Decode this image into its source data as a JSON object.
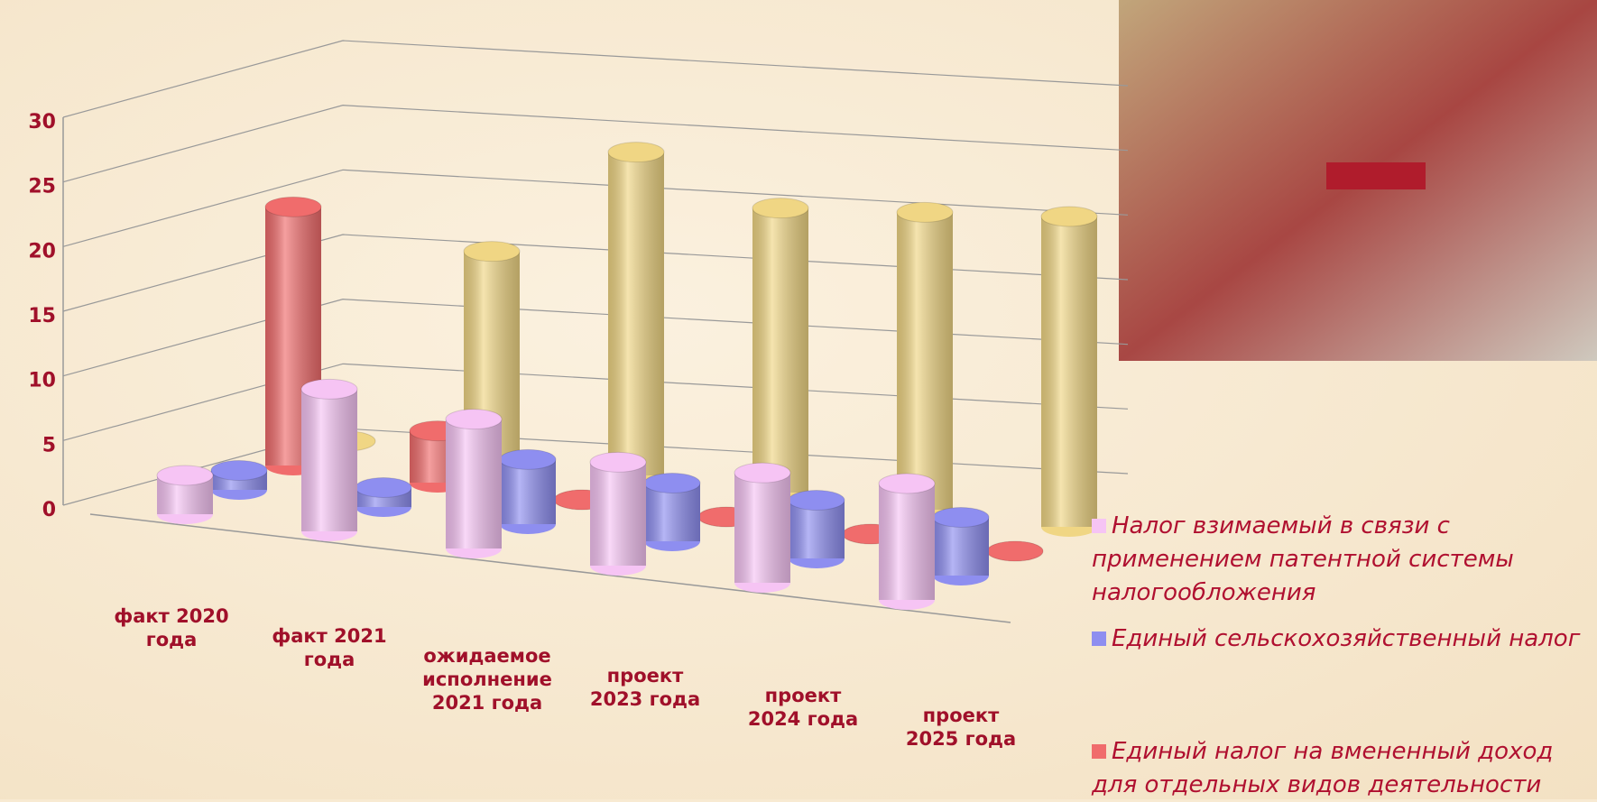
{
  "chart_data": {
    "type": "bar3d",
    "categories": [
      "факт 2020 года",
      "факт 2021 года",
      "ожидаемое исполнение 2021 года",
      "проект 2023 года",
      "проект 2024 года",
      "проект 2025 года"
    ],
    "series": [
      {
        "name": "Налог взимаемый в связи с применением патентной системы налогообложения",
        "color": "#f6c4f4",
        "values": [
          3,
          11,
          10,
          8,
          8.5,
          9
        ]
      },
      {
        "name": "Единый сельскохозяйственный налог",
        "color": "#8e8ef0",
        "values": [
          1.5,
          1.5,
          5,
          4.5,
          4.5,
          4.5
        ]
      },
      {
        "name": "Единый налог на вмененный доход для отдельных видов деятельности",
        "color": "#f06c6c",
        "values": [
          20,
          4,
          0,
          0,
          0,
          0
        ]
      },
      {
        "color": "#f0d684",
        "values": [
          0,
          16,
          25,
          22,
          23,
          24
        ]
      }
    ],
    "ylim": [
      0,
      30
    ],
    "yticks": [
      0,
      5,
      10,
      15,
      20,
      25,
      30
    ],
    "grid": true
  }
}
